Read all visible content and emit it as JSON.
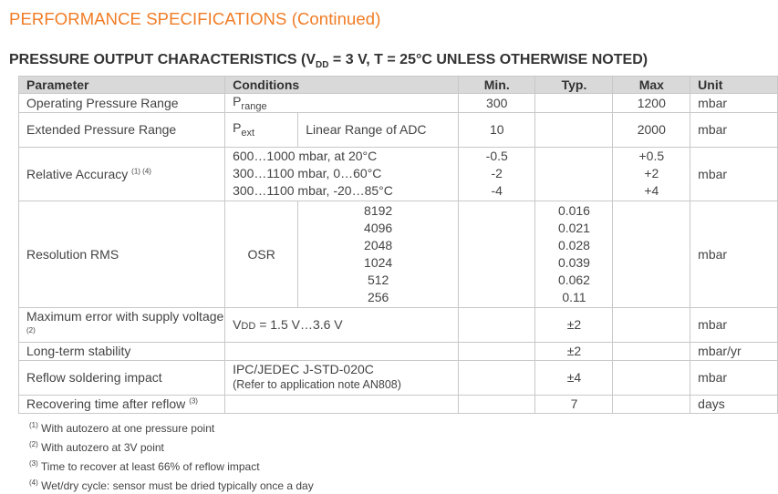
{
  "page_title": "PERFORMANCE SPECIFICATIONS (Continued)",
  "section_title_pre": "PRESSURE OUTPUT CHARACTERISTICS (V",
  "section_title_sub": "DD",
  "section_title_post": " = 3 V, T = 25°C UNLESS OTHERWISE NOTED)",
  "headers": {
    "parameter": "Parameter",
    "conditions": "Conditions",
    "min": "Min.",
    "typ": "Typ.",
    "max": "Max",
    "unit": "Unit"
  },
  "rows": {
    "op_range": {
      "param": "Operating Pressure Range",
      "sym": "P",
      "sym_sub": "range",
      "min": "300",
      "max": "1200",
      "unit": "mbar"
    },
    "ext_range": {
      "param": "Extended Pressure Range",
      "sym": "P",
      "sym_sub": "ext",
      "cond": "Linear Range of ADC",
      "min": "10",
      "max": "2000",
      "unit": "mbar"
    },
    "rel_acc": {
      "param": "Relative Accuracy",
      "note": "(1) (4)",
      "conds": [
        "600…1000 mbar, at 20°C",
        "300…1100 mbar, 0…60°C",
        "300…1100 mbar, -20…85°C"
      ],
      "mins": [
        "-0.5",
        "-2",
        "-4"
      ],
      "maxs": [
        "+0.5",
        "+2",
        "+4"
      ],
      "unit": "mbar"
    },
    "res": {
      "param": "Resolution RMS",
      "cond": "OSR",
      "osr": [
        "8192",
        "4096",
        "2048",
        "1024",
        "512",
        "256"
      ],
      "typs": [
        "0.016",
        "0.021",
        "0.028",
        "0.039",
        "0.062",
        "0.11"
      ],
      "unit": "mbar"
    },
    "max_err": {
      "param": "Maximum error with supply voltage",
      "note": "(2)",
      "cond_pre": "V",
      "cond_sub": "DD",
      "cond_post": " = 1.5 V…3.6 V",
      "typ": "±2",
      "unit": "mbar"
    },
    "long_term": {
      "param": "Long-term stability",
      "typ": "±2",
      "unit": "mbar/yr"
    },
    "reflow": {
      "param": "Reflow soldering impact",
      "cond1": "IPC/JEDEC J-STD-020C",
      "cond2": "(Refer to application note AN808)",
      "typ": "±4",
      "unit": "mbar"
    },
    "recover": {
      "param": "Recovering time after reflow",
      "note": "(3)",
      "typ": "7",
      "unit": "days"
    }
  },
  "footnotes": [
    {
      "mark": "(1)",
      "text": "With autozero at one pressure point"
    },
    {
      "mark": "(2)",
      "text": "With autozero at 3V point"
    },
    {
      "mark": "(3)",
      "text": "Time to recover at least 66% of reflow impact"
    },
    {
      "mark": "(4)",
      "text": "Wet/dry cycle: sensor must be dried typically once a day"
    }
  ]
}
